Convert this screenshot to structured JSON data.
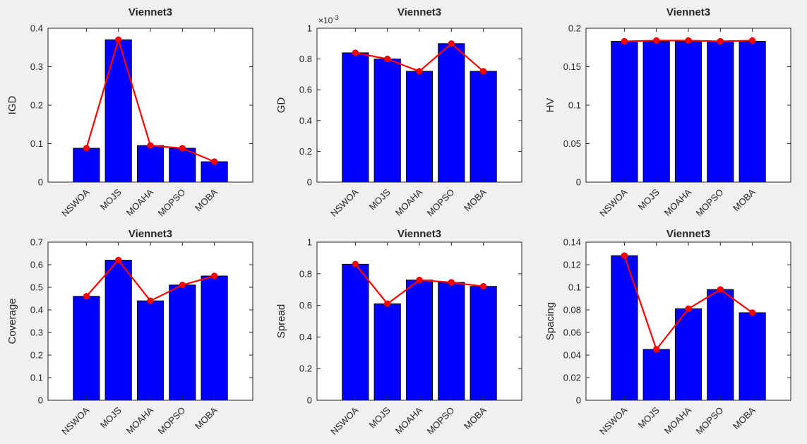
{
  "figure": {
    "name": "MATLAB figure - Viennet3 benchmark metrics",
    "background": "#f0f0f0"
  },
  "style": {
    "axes_background": "#ffffff",
    "axis_color": "#262626",
    "tick_label_color": "#262626",
    "title_color": "#000000",
    "bar_color": "#0000ff",
    "bar_edge_color": "#000000",
    "line_color": "#ff0000",
    "marker": "filled-circle",
    "marker_color": "#ff0000"
  },
  "chart_data": [
    {
      "type": "bar",
      "title": "Viennet3",
      "xlabel": "",
      "ylabel": "IGD",
      "categories": [
        "NSWOA",
        "MOJS",
        "MOAHA",
        "MOPSO",
        "MOBA"
      ],
      "values": [
        0.088,
        0.37,
        0.095,
        0.088,
        0.053
      ],
      "overlay_line": {
        "type": "line",
        "values": [
          0.088,
          0.37,
          0.095,
          0.088,
          0.053
        ]
      },
      "ylim": [
        0,
        0.4
      ],
      "yticks": [
        0,
        0.1,
        0.2,
        0.3,
        0.4
      ],
      "yticklabels": [
        "0",
        "0.1",
        "0.2",
        "0.3",
        "0.4"
      ],
      "grid": false,
      "legend": null,
      "xtick_rotation_deg": 45
    },
    {
      "type": "bar",
      "title": "Viennet3",
      "xlabel": "",
      "ylabel": "GD",
      "offset": {
        "mantissa": "×10",
        "exponent": "-3"
      },
      "categories": [
        "NSWOA",
        "MOJS",
        "MOAHA",
        "MOPSO",
        "MOBA"
      ],
      "values": [
        0.84,
        0.8,
        0.72,
        0.9,
        0.72
      ],
      "overlay_line": {
        "type": "line",
        "values": [
          0.84,
          0.8,
          0.72,
          0.9,
          0.72
        ]
      },
      "ylim": [
        0,
        1
      ],
      "yticks": [
        0,
        0.2,
        0.4,
        0.6,
        0.8,
        1
      ],
      "yticklabels": [
        "0",
        "0.2",
        "0.4",
        "0.6",
        "0.8",
        "1"
      ],
      "grid": false,
      "legend": null,
      "xtick_rotation_deg": 45
    },
    {
      "type": "bar",
      "title": "Viennet3",
      "xlabel": "",
      "ylabel": "HV",
      "categories": [
        "NSWOA",
        "MOJS",
        "MOAHA",
        "MOPSO",
        "MOBA"
      ],
      "values": [
        0.183,
        0.183,
        0.183,
        0.183,
        0.183
      ],
      "overlay_line": {
        "type": "line",
        "values": [
          0.183,
          0.184,
          0.184,
          0.183,
          0.184
        ]
      },
      "ylim": [
        0,
        0.2
      ],
      "yticks": [
        0,
        0.05,
        0.1,
        0.15,
        0.2
      ],
      "yticklabels": [
        "0",
        "0.05",
        "0.1",
        "0.15",
        "0.2"
      ],
      "grid": false,
      "legend": null,
      "xtick_rotation_deg": 45
    },
    {
      "type": "bar",
      "title": "Viennet3",
      "xlabel": "",
      "ylabel": "Coverage",
      "categories": [
        "NSWOA",
        "MOJS",
        "MOAHA",
        "MOPSO",
        "MOBA"
      ],
      "values": [
        0.46,
        0.62,
        0.44,
        0.51,
        0.55
      ],
      "overlay_line": {
        "type": "line",
        "values": [
          0.46,
          0.62,
          0.44,
          0.51,
          0.55
        ]
      },
      "ylim": [
        0,
        0.7
      ],
      "yticks": [
        0,
        0.1,
        0.2,
        0.3,
        0.4,
        0.5,
        0.6,
        0.7
      ],
      "yticklabels": [
        "0",
        "0.1",
        "0.2",
        "0.3",
        "0.4",
        "0.5",
        "0.6",
        "0.7"
      ],
      "grid": false,
      "legend": null,
      "xtick_rotation_deg": 45
    },
    {
      "type": "bar",
      "title": "Viennet3",
      "xlabel": "",
      "ylabel": "Spread",
      "categories": [
        "NSWOA",
        "MOJS",
        "MOAHA",
        "MOPSO",
        "MOBA"
      ],
      "values": [
        0.86,
        0.61,
        0.76,
        0.745,
        0.72
      ],
      "overlay_line": {
        "type": "line",
        "values": [
          0.86,
          0.61,
          0.76,
          0.745,
          0.72
        ]
      },
      "ylim": [
        0,
        1
      ],
      "yticks": [
        0,
        0.2,
        0.4,
        0.6,
        0.8,
        1
      ],
      "yticklabels": [
        "0",
        "0.2",
        "0.4",
        "0.6",
        "0.8",
        "1"
      ],
      "grid": false,
      "legend": null,
      "xtick_rotation_deg": 45
    },
    {
      "type": "bar",
      "title": "Viennet3",
      "xlabel": "",
      "ylabel": "Spacing",
      "categories": [
        "NSWOA",
        "MOJS",
        "MOAHA",
        "MOPSO",
        "MOBA"
      ],
      "values": [
        0.128,
        0.045,
        0.081,
        0.098,
        0.0775
      ],
      "overlay_line": {
        "type": "line",
        "values": [
          0.128,
          0.045,
          0.081,
          0.098,
          0.0775
        ]
      },
      "ylim": [
        0,
        0.14
      ],
      "yticks": [
        0,
        0.02,
        0.04,
        0.06,
        0.08,
        0.1,
        0.12,
        0.14
      ],
      "yticklabels": [
        "0",
        "0.02",
        "0.04",
        "0.06",
        "0.08",
        "0.1",
        "0.12",
        "0.14"
      ],
      "grid": false,
      "legend": null,
      "xtick_rotation_deg": 45
    }
  ]
}
